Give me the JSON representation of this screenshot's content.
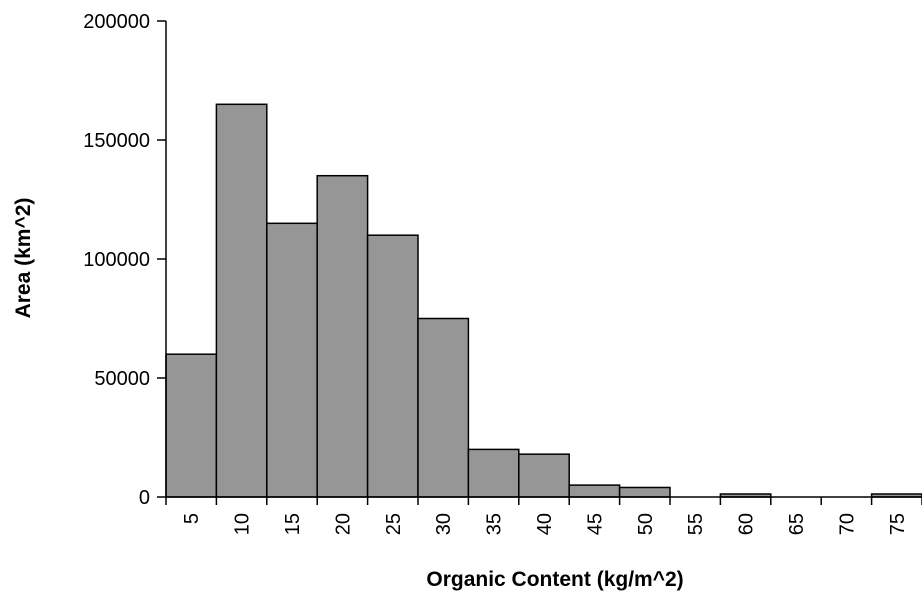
{
  "chart_data": {
    "type": "bar",
    "title": "",
    "xlabel": "Organic Content (kg/m^2)",
    "ylabel": "Area (km^2)",
    "categories": [
      "5",
      "10",
      "15",
      "20",
      "25",
      "30",
      "35",
      "40",
      "45",
      "50",
      "55",
      "60",
      "65",
      "70",
      "75"
    ],
    "values": [
      60000,
      165000,
      115000,
      135000,
      110000,
      75000,
      20000,
      18000,
      5000,
      4000,
      0,
      1000,
      0,
      0,
      1000
    ],
    "ylim": [
      0,
      200000
    ],
    "yticks": [
      "0",
      "50000",
      "100000",
      "150000",
      "200000"
    ],
    "ytick_values": [
      0,
      50000,
      100000,
      150000,
      200000
    ],
    "grid": false,
    "legend": "none",
    "bar_color": "#969696",
    "bar_edge_color": "#000000"
  }
}
